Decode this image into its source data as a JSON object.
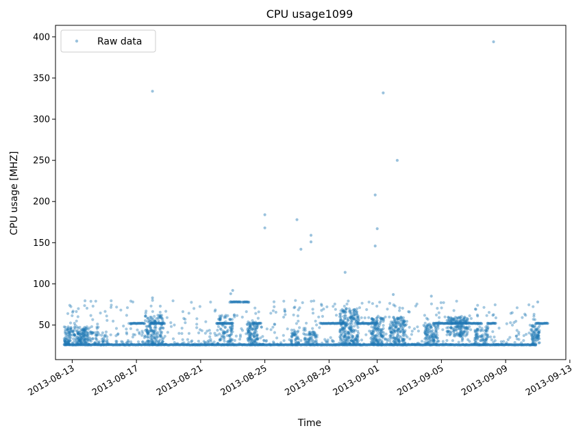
{
  "chart_data": {
    "type": "scatter",
    "title": "CPU usage1099",
    "xlabel": "Time",
    "ylabel": "CPU usage [MHZ]",
    "x_ticks": [
      "2013-08-13",
      "2013-08-17",
      "2013-08-21",
      "2013-08-25",
      "2013-08-29",
      "2013-09-01",
      "2013-09-05",
      "2013-09-09",
      "2013-09-13"
    ],
    "xlim": [
      "2012-08-11T23:00",
      "2013-09-12T18:00"
    ],
    "y_ticks": [
      50,
      100,
      150,
      200,
      250,
      300,
      350,
      400
    ],
    "ylim": [
      8,
      414
    ],
    "grid": false,
    "legend": {
      "position": "top-left",
      "entries": [
        "Raw data"
      ]
    },
    "series": [
      {
        "name": "Raw data",
        "color": "#1f77b4",
        "baselines": [
          {
            "start": "2013-08-12T12:00",
            "end": "2013-09-10T21:00",
            "value": 26
          }
        ],
        "segments": [
          {
            "start": "2013-08-16T15:00",
            "end": "2013-08-17T12:00",
            "value": 52
          },
          {
            "start": "2013-08-17T21:00",
            "end": "2013-08-18T18:00",
            "value": 52
          },
          {
            "start": "2013-08-22T00:00",
            "end": "2013-08-23T00:00",
            "value": 52
          },
          {
            "start": "2013-08-22T21:00",
            "end": "2013-08-23T12:00",
            "value": 78
          },
          {
            "start": "2013-08-23T15:00",
            "end": "2013-08-24T00:00",
            "value": 78
          },
          {
            "start": "2013-08-24T06:00",
            "end": "2013-08-24T18:00",
            "value": 52
          },
          {
            "start": "2013-08-28T12:00",
            "end": "2013-08-30T00:00",
            "value": 52
          },
          {
            "start": "2013-08-30T18:00",
            "end": "2013-09-01T00:00",
            "value": 52
          },
          {
            "start": "2013-09-04T12:00",
            "end": "2013-09-07T12:00",
            "value": 52
          },
          {
            "start": "2013-09-07T21:00",
            "end": "2013-09-08T09:00",
            "value": 52
          },
          {
            "start": "2013-09-10T21:00",
            "end": "2013-09-11T15:00",
            "value": 52
          }
        ],
        "outliers": [
          {
            "x": "2013-08-18T00:00",
            "y": 334
          },
          {
            "x": "2013-08-18T00:00",
            "y": 83
          },
          {
            "x": "2013-08-22T21:00",
            "y": 88
          },
          {
            "x": "2013-08-23T00:00",
            "y": 92
          },
          {
            "x": "2013-08-25T00:00",
            "y": 184
          },
          {
            "x": "2013-08-25T00:00",
            "y": 168
          },
          {
            "x": "2013-08-27T00:00",
            "y": 178
          },
          {
            "x": "2013-08-27T06:00",
            "y": 142
          },
          {
            "x": "2013-08-27T21:00",
            "y": 159
          },
          {
            "x": "2013-08-27T21:00",
            "y": 151
          },
          {
            "x": "2013-08-30T00:00",
            "y": 114
          },
          {
            "x": "2013-08-31T21:00",
            "y": 208
          },
          {
            "x": "2013-09-01T00:00",
            "y": 167
          },
          {
            "x": "2013-08-31T21:00",
            "y": 146
          },
          {
            "x": "2013-09-01T09:00",
            "y": 332
          },
          {
            "x": "2013-09-02T06:00",
            "y": 250
          },
          {
            "x": "2013-09-08T06:00",
            "y": 394
          },
          {
            "x": "2013-09-02T00:00",
            "y": 87
          },
          {
            "x": "2013-09-04T09:00",
            "y": 85
          },
          {
            "x": "2013-09-11T00:00",
            "y": 78
          }
        ],
        "clusters": [
          {
            "center": "2013-08-13T06:00",
            "spread_hours": 18,
            "y_range": [
              26,
              48
            ],
            "count": 160
          },
          {
            "center": "2013-08-14T06:00",
            "spread_hours": 24,
            "y_range": [
              26,
              42
            ],
            "count": 70
          },
          {
            "center": "2013-08-18T03:00",
            "spread_hours": 14,
            "y_range": [
              26,
              62
            ],
            "count": 140
          },
          {
            "center": "2013-08-22T12:00",
            "spread_hours": 12,
            "y_range": [
              26,
              62
            ],
            "count": 80
          },
          {
            "center": "2013-08-24T06:00",
            "spread_hours": 8,
            "y_range": [
              26,
              54
            ],
            "count": 90
          },
          {
            "center": "2013-08-26T21:00",
            "spread_hours": 6,
            "y_range": [
              26,
              44
            ],
            "count": 40
          },
          {
            "center": "2013-08-27T21:00",
            "spread_hours": 10,
            "y_range": [
              26,
              42
            ],
            "count": 50
          },
          {
            "center": "2013-08-30T06:00",
            "spread_hours": 14,
            "y_range": [
              26,
              70
            ],
            "count": 220
          },
          {
            "center": "2013-09-01T00:00",
            "spread_hours": 10,
            "y_range": [
              26,
              60
            ],
            "count": 120
          },
          {
            "center": "2013-09-02T06:00",
            "spread_hours": 12,
            "y_range": [
              26,
              60
            ],
            "count": 140
          },
          {
            "center": "2013-09-04T09:00",
            "spread_hours": 10,
            "y_range": [
              26,
              52
            ],
            "count": 90
          },
          {
            "center": "2013-09-06T00:00",
            "spread_hours": 16,
            "y_range": [
              36,
              60
            ],
            "count": 150
          },
          {
            "center": "2013-09-07T12:00",
            "spread_hours": 10,
            "y_range": [
              26,
              48
            ],
            "count": 70
          },
          {
            "center": "2013-09-10T21:00",
            "spread_hours": 6,
            "y_range": [
              26,
              50
            ],
            "count": 70
          }
        ],
        "scatter_range": {
          "y_range": [
            26,
            80
          ],
          "count": 700
        }
      }
    ]
  }
}
